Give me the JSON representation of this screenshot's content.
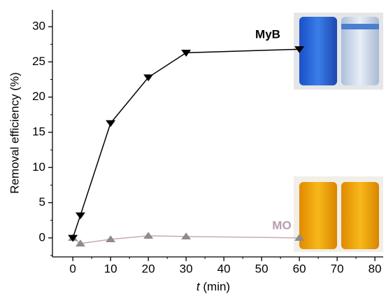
{
  "chart_data": {
    "type": "line",
    "x_label_var": "t",
    "x_label_unit": "(min)",
    "y_label": "Removal efficiency (%)",
    "xlim": [
      -5.4,
      82.2
    ],
    "ylim": [
      -2.7,
      32.4
    ],
    "xticks": [
      0,
      10,
      20,
      30,
      40,
      50,
      60,
      70,
      80
    ],
    "yticks": [
      0,
      5,
      10,
      15,
      20,
      25,
      30
    ],
    "xminorticks": [
      5,
      15,
      25,
      35,
      45,
      55,
      65,
      75
    ],
    "yminorticks": [
      -2.5,
      2.5,
      7.5,
      12.5,
      17.5,
      22.5,
      27.5
    ],
    "series": [
      {
        "name": "MyB",
        "color": "#000000",
        "line_color": "#000000",
        "marker": "down",
        "label_color": "#000000",
        "x": [
          0,
          2,
          10,
          20,
          30,
          60
        ],
        "values": [
          0,
          3.2,
          16.3,
          22.8,
          26.3,
          26.8
        ]
      },
      {
        "name": "MO",
        "color": "#8c8c8c",
        "line_color": "#c9a8b2",
        "marker": "up",
        "label_color": "#b89cae",
        "x": [
          0,
          2,
          10,
          20,
          30,
          60
        ],
        "values": [
          0,
          -0.8,
          -0.2,
          0.3,
          0.2,
          0
        ]
      }
    ]
  }
}
